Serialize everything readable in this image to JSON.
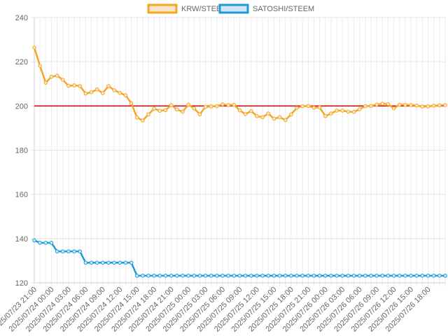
{
  "chart_data": {
    "type": "line",
    "ylim": [
      120,
      240
    ],
    "yticks": [
      120,
      140,
      160,
      180,
      200,
      220,
      240
    ],
    "grid": true,
    "legend_placement": "top-center",
    "reference_line": {
      "value": 200,
      "color": "#cc0000"
    },
    "x_tick_labels": [
      "2025/07/23 21:00",
      "2025/07/24 00:00",
      "2025/07/24 03:00",
      "2025/07/24 06:00",
      "2025/07/24 09:00",
      "2025/07/24 12:00",
      "2025/07/24 15:00",
      "2025/07/24 18:00",
      "2025/07/24 21:00",
      "2025/07/25 00:00",
      "2025/07/25 03:00",
      "2025/07/25 06:00",
      "2025/07/25 09:00",
      "2025/07/25 12:00",
      "2025/07/25 15:00",
      "2025/07/25 18:00",
      "2025/07/25 21:00",
      "2025/07/26 00:00",
      "2025/07/26 03:00",
      "2025/07/26 06:00",
      "2025/07/26 09:00",
      "2025/07/26 12:00",
      "2025/07/26 15:00",
      "2025/07/26 18:00"
    ],
    "x_start": "2025/07/23 21:00",
    "x_end": "2025/07/26 20:00",
    "series": [
      {
        "name": "KRW/STEEM",
        "color": "#f5a623",
        "fill": "#f8e4c8",
        "values": [
          226.4,
          218.1,
          210.5,
          213.2,
          213.7,
          211.8,
          209.1,
          209.3,
          209.0,
          205.6,
          206.2,
          207.5,
          205.8,
          209.0,
          207.1,
          205.9,
          204.8,
          201.2,
          194.8,
          193.4,
          196.2,
          198.8,
          197.8,
          198.1,
          200.4,
          198.4,
          197.4,
          200.6,
          198.9,
          196.2,
          199.6,
          199.8,
          199.9,
          200.7,
          200.4,
          200.5,
          198.0,
          196.3,
          197.7,
          195.4,
          194.9,
          196.6,
          194.2,
          194.9,
          193.6,
          196.2,
          199.1,
          199.9,
          200.0,
          199.2,
          199.3,
          195.4,
          196.6,
          197.9,
          197.9,
          197.4,
          197.3,
          198.5,
          199.9,
          200.0,
          200.6,
          201.0,
          200.8,
          198.9,
          200.6,
          200.5,
          200.4,
          200.2,
          199.7,
          199.8,
          200.1,
          200.3,
          200.4
        ]
      },
      {
        "name": "SATOSHI/STEEM",
        "color": "#1e9bd7",
        "fill": "#cfe6f5",
        "values": [
          139.2,
          138.1,
          138.1,
          138.1,
          134.2,
          134.2,
          134.2,
          134.2,
          134.2,
          129.1,
          129.1,
          129.1,
          129.1,
          129.1,
          129.1,
          129.1,
          129.1,
          129.1,
          123.2,
          123.2,
          123.2,
          123.2,
          123.2,
          123.2,
          123.2,
          123.2,
          123.2,
          123.2,
          123.2,
          123.2,
          123.2,
          123.2,
          123.2,
          123.2,
          123.2,
          123.2,
          123.2,
          123.2,
          123.2,
          123.2,
          123.2,
          123.2,
          123.2,
          123.2,
          123.2,
          123.2,
          123.2,
          123.2,
          123.2,
          123.2,
          123.2,
          123.2,
          123.2,
          123.2,
          123.2,
          123.2,
          123.2,
          123.2,
          123.2,
          123.2,
          123.2,
          123.2,
          123.2,
          123.2,
          123.2,
          123.2,
          123.2,
          123.2,
          123.2,
          123.2,
          123.2,
          123.2,
          123.2
        ]
      }
    ]
  }
}
